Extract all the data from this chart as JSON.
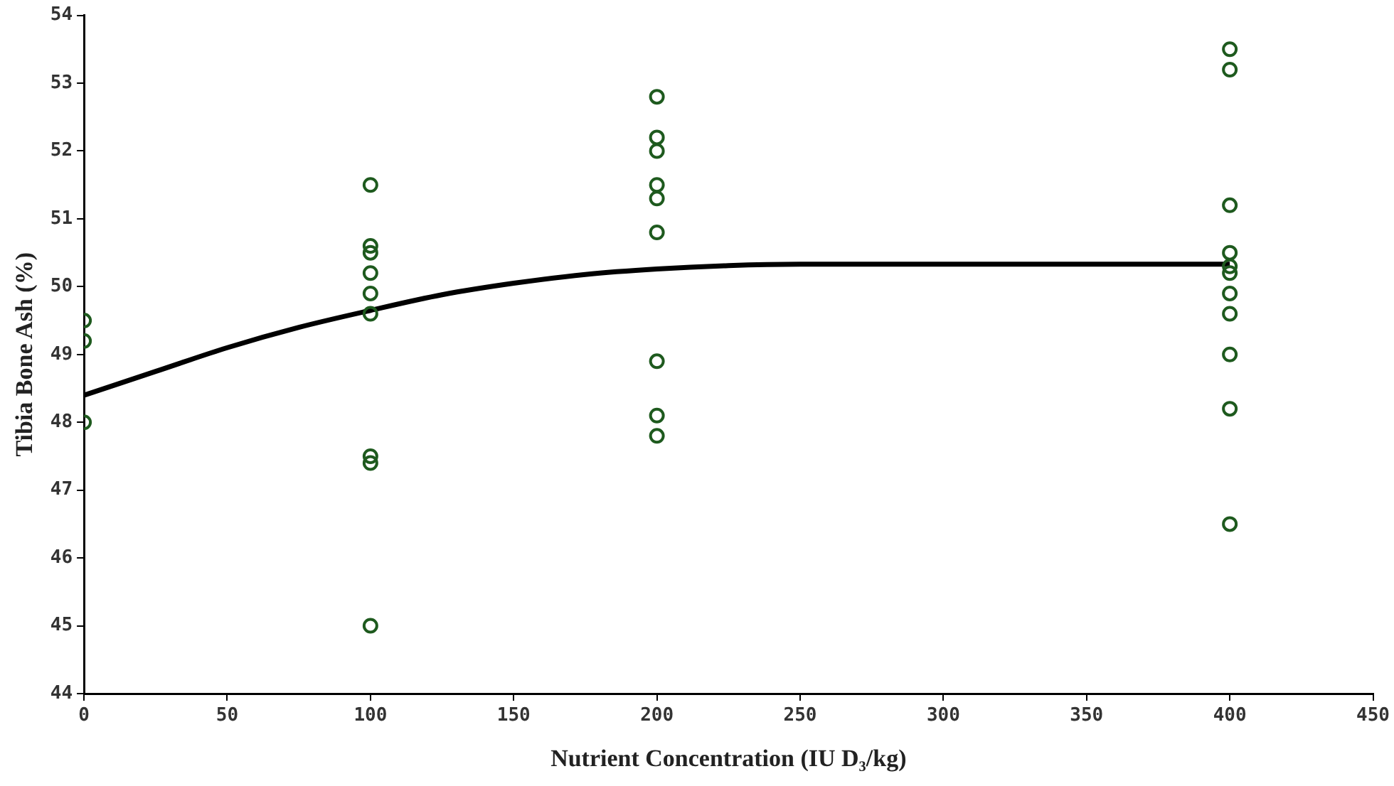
{
  "chart_data": {
    "type": "scatter",
    "xlabel": "Nutrient Concentration (IU D₃/kg)",
    "ylabel": "Tibia Bone Ash (%)",
    "xlim": [
      0,
      450
    ],
    "xticks": [
      0,
      50,
      100,
      150,
      200,
      250,
      300,
      350,
      400,
      450
    ],
    "ylim": [
      44,
      54
    ],
    "yticks": [
      44,
      45,
      46,
      47,
      48,
      49,
      50,
      51,
      52,
      53,
      54
    ],
    "grid": false,
    "legend": false,
    "marker": "circle",
    "series": [
      {
        "color": "#1e5a1e",
        "x": [
          0,
          0,
          0,
          100,
          100,
          100,
          100,
          100,
          100,
          100,
          100,
          100,
          200,
          200,
          200,
          200,
          200,
          200,
          200,
          200,
          200,
          400,
          400,
          400,
          400,
          400,
          400,
          400,
          400,
          400,
          400,
          400
        ],
        "values": [
          49.5,
          49.2,
          48.0,
          51.5,
          50.6,
          50.5,
          50.2,
          49.9,
          49.6,
          47.5,
          47.4,
          45.0,
          52.8,
          52.2,
          52.0,
          51.5,
          51.3,
          50.8,
          48.9,
          48.1,
          47.8,
          53.5,
          53.2,
          51.2,
          50.5,
          50.3,
          50.2,
          49.9,
          49.6,
          49.0,
          48.2,
          46.5
        ]
      },
      {
        "type": "line",
        "color": "#000000",
        "marker": "none",
        "line_style": "solid",
        "x": [
          0,
          25,
          50,
          75,
          100,
          125,
          150,
          175,
          200,
          225,
          250,
          300,
          400
        ],
        "values": [
          48.4,
          48.75,
          49.1,
          49.4,
          49.65,
          49.88,
          50.05,
          50.18,
          50.26,
          50.31,
          50.33,
          50.33,
          50.33
        ]
      }
    ]
  }
}
